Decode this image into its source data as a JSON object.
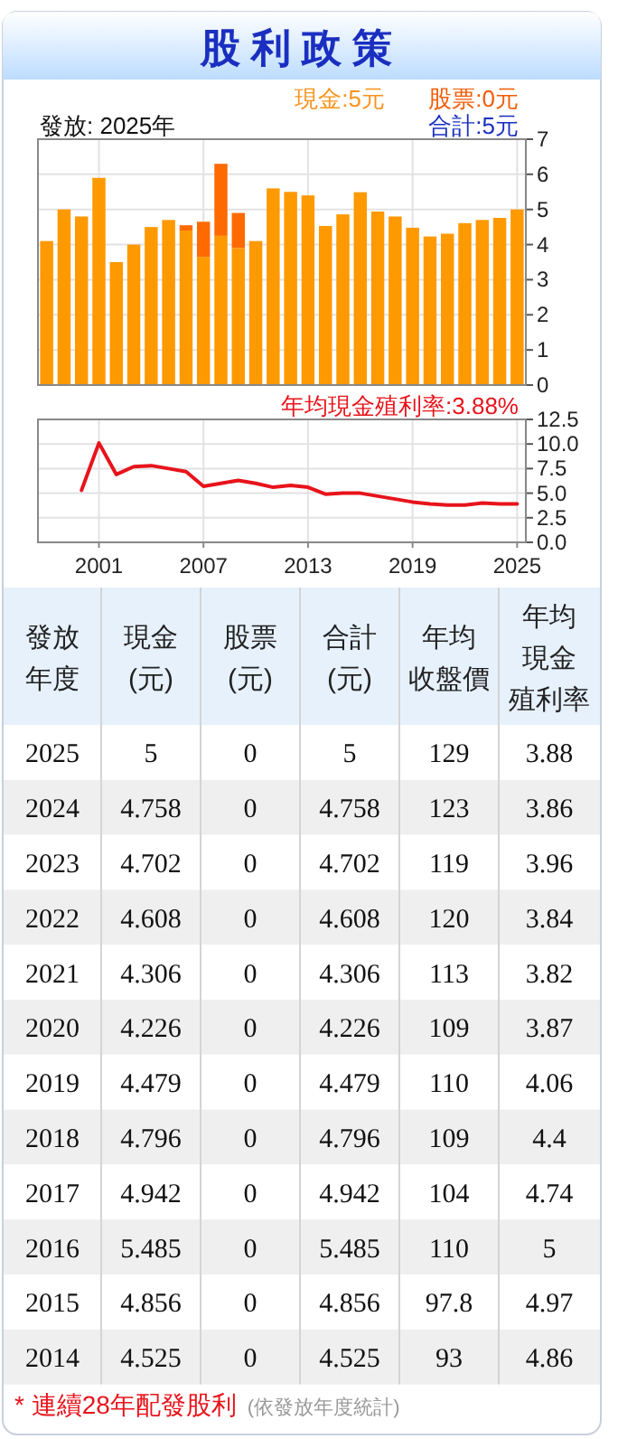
{
  "chart_data": [
    {
      "type": "bar",
      "title": "股利政策",
      "subtitle": "發放: 2025年",
      "annotations": [
        "現金:5元",
        "股票:0元",
        "合計:5元"
      ],
      "stacked": true,
      "x": [
        1998,
        1999,
        2000,
        2001,
        2002,
        2003,
        2004,
        2005,
        2006,
        2007,
        2008,
        2009,
        2010,
        2011,
        2012,
        2013,
        2014,
        2015,
        2016,
        2017,
        2018,
        2019,
        2020,
        2021,
        2022,
        2023,
        2024,
        2025
      ],
      "xlim": [
        1997.5,
        2025.5
      ],
      "xticks": [
        {
          "value": 2001,
          "label": null
        },
        {
          "value": 2007,
          "label": null
        },
        {
          "value": 2013,
          "label": null
        },
        {
          "value": 2019,
          "label": null
        },
        {
          "value": 2025,
          "label": null
        }
      ],
      "ylim": [
        0,
        7
      ],
      "yticks": [
        0,
        1,
        2,
        3,
        4,
        5,
        6,
        7
      ],
      "grid": true,
      "tick_labels": "y",
      "series": [
        {
          "color": "#ff9900",
          "values": [
            4.1,
            5.0,
            4.8,
            5.9,
            3.5,
            4.0,
            4.5,
            4.7,
            4.4,
            3.65,
            4.25,
            3.9,
            4.1,
            5.6,
            5.5,
            5.4,
            4.53,
            4.86,
            5.49,
            4.94,
            4.8,
            4.48,
            4.23,
            4.31,
            4.61,
            4.7,
            4.76,
            5
          ]
        },
        {
          "color": "#ff6a00",
          "values": [
            0,
            0,
            0,
            0,
            0,
            0,
            0,
            0,
            0.15,
            1,
            2.05,
            1,
            0,
            0,
            0,
            0,
            0,
            0,
            0,
            0,
            0,
            0,
            0,
            0,
            0,
            0,
            0,
            0
          ]
        }
      ]
    },
    {
      "type": "line",
      "title": "年均現金殖利率:3.88%",
      "x": [
        2000,
        2001,
        2002,
        2003,
        2004,
        2005,
        2006,
        2007,
        2008,
        2009,
        2010,
        2011,
        2012,
        2013,
        2014,
        2015,
        2016,
        2017,
        2018,
        2019,
        2020,
        2021,
        2022,
        2023,
        2024,
        2025
      ],
      "xlim": [
        1997.5,
        2025.5
      ],
      "xticks": [
        2001,
        2007,
        2013,
        2019,
        2025
      ],
      "ylim": [
        0,
        12.5
      ],
      "yticks": [
        {
          "value": 0,
          "label": "0.0"
        },
        {
          "value": 2.5,
          "label": "2.5"
        },
        {
          "value": 5,
          "label": "5.0"
        },
        {
          "value": 7.5,
          "label": "7.5"
        },
        {
          "value": 10,
          "label": "10.0"
        },
        {
          "value": 12.5,
          "label": "12.5"
        }
      ],
      "grid": true,
      "marker": "none",
      "series": [
        {
          "color": "#e8131b",
          "values": [
            5.3,
            10.1,
            6.9,
            7.7,
            7.8,
            7.5,
            7.2,
            5.7,
            6.0,
            6.3,
            6.0,
            5.6,
            5.8,
            5.6,
            4.9,
            5.0,
            5,
            4.7,
            4.4,
            4.1,
            3.9,
            3.8,
            3.8,
            4.0,
            3.9,
            3.9
          ]
        }
      ]
    },
    {
      "type": "heatmap",
      "data_labels": true,
      "ylabel": "發放年度",
      "categories": [
        "現金(元)",
        "股票(元)",
        "合計(元)",
        "年均收盤價",
        "年均現金殖利率"
      ],
      "y_categories": [
        "2025",
        "2024",
        "2023",
        "2022",
        "2021",
        "2020",
        "2019",
        "2018",
        "2017",
        "2016",
        "2015",
        "2014"
      ],
      "cells": [
        [
          5,
          0,
          5,
          129,
          3.88
        ],
        [
          4.758,
          0,
          4.758,
          123,
          3.86
        ],
        [
          4.702,
          0,
          4.702,
          119,
          3.96
        ],
        [
          4.608,
          0,
          4.608,
          120,
          3.84
        ],
        [
          4.306,
          0,
          4.306,
          113,
          3.82
        ],
        [
          4.226,
          0,
          4.226,
          109,
          3.87
        ],
        [
          4.479,
          0,
          4.479,
          110,
          4.06
        ],
        [
          4.796,
          0,
          4.796,
          109,
          4.4
        ],
        [
          4.942,
          0,
          4.942,
          104,
          4.74
        ],
        [
          5.485,
          0,
          5.485,
          110,
          5
        ],
        [
          4.856,
          0,
          4.856,
          97.8,
          4.97
        ],
        [
          4.525,
          0,
          4.525,
          93,
          4.86
        ]
      ],
      "annotations": [
        "* 連續28年配發股利",
        "(依發放年度統計)"
      ]
    }
  ]
}
